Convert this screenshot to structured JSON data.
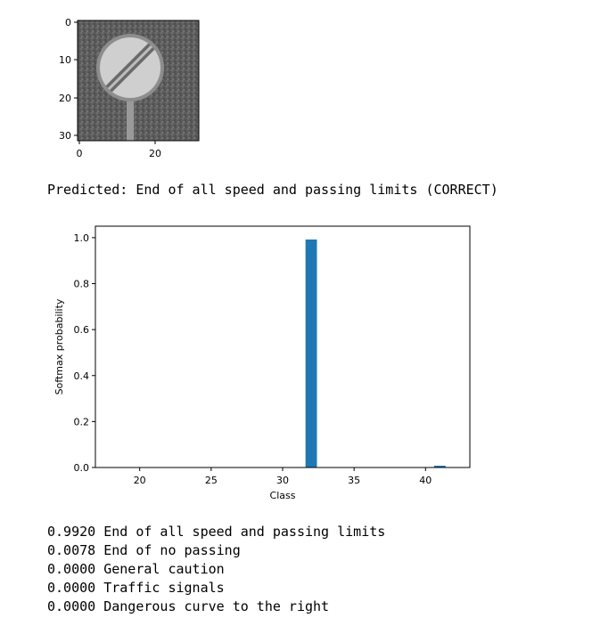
{
  "image_plot": {
    "x_ticks": [
      "0",
      "20"
    ],
    "y_ticks": [
      "0",
      "10",
      "20",
      "30"
    ]
  },
  "prediction": {
    "text": "Predicted: End of all speed and passing limits (CORRECT)"
  },
  "chart_data": {
    "type": "bar",
    "xlabel": "Class",
    "ylabel": "Softmax probability",
    "xlim": [
      16.9,
      43.1
    ],
    "ylim": [
      0,
      1.05
    ],
    "x_ticks": [
      20,
      25,
      30,
      35,
      40
    ],
    "y_ticks": [
      "0.0",
      "0.2",
      "0.4",
      "0.6",
      "0.8",
      "1.0"
    ],
    "bars": [
      {
        "x": 32,
        "value": 0.992
      },
      {
        "x": 41,
        "value": 0.0078
      }
    ],
    "bar_color": "#1f77b4"
  },
  "top5": [
    "0.9920 End of all speed and passing limits",
    "0.0078 End of no passing",
    "0.0000 General caution",
    "0.0000 Traffic signals",
    "0.0000 Dangerous curve to the right"
  ]
}
